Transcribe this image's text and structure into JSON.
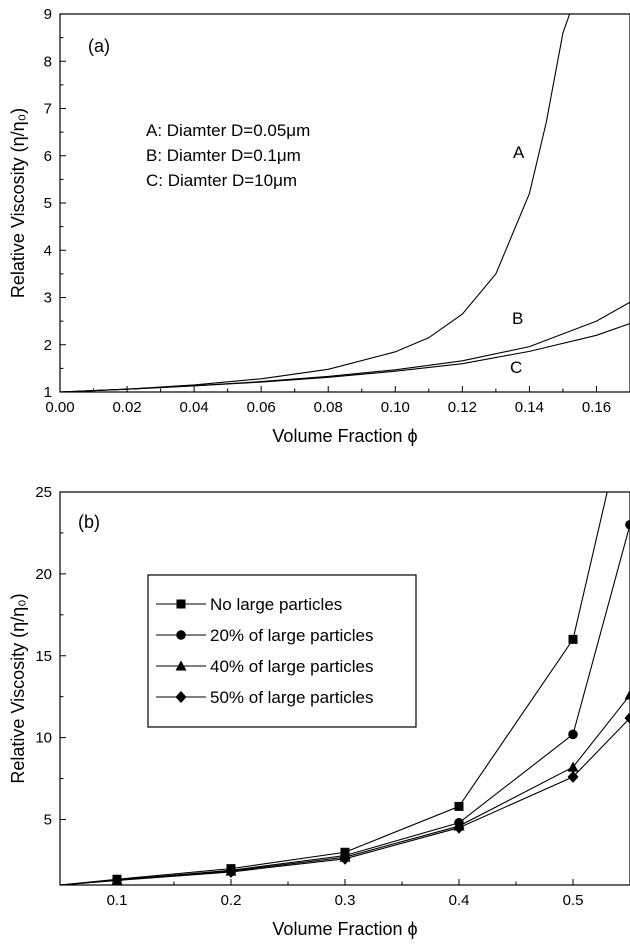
{
  "chart_data": [
    {
      "type": "line",
      "panel_label": "(a)",
      "xlabel": "Volume Fraction ϕ",
      "ylabel": "Relative Viscosity (η/η₀)",
      "xlim": [
        0.0,
        0.17
      ],
      "ylim": [
        1,
        9
      ],
      "xticks": [
        "0.00",
        "0.02",
        "0.04",
        "0.06",
        "0.08",
        "0.10",
        "0.12",
        "0.14",
        "0.16"
      ],
      "yticks": [
        "1",
        "2",
        "3",
        "4",
        "5",
        "6",
        "7",
        "8",
        "9"
      ],
      "annotations": [
        "A: Diamter D=0.05μm",
        "B: Diamter D=0.1μm",
        "C: Diamter D=10μm"
      ],
      "series": [
        {
          "name": "A",
          "x": [
            0.0,
            0.02,
            0.04,
            0.06,
            0.08,
            0.1,
            0.11,
            0.12,
            0.13,
            0.14,
            0.145,
            0.15,
            0.152
          ],
          "y": [
            1.0,
            1.06,
            1.15,
            1.28,
            1.48,
            1.85,
            2.15,
            2.65,
            3.5,
            5.2,
            6.7,
            8.6,
            9.0
          ]
        },
        {
          "name": "B",
          "x": [
            0.0,
            0.02,
            0.04,
            0.06,
            0.08,
            0.1,
            0.12,
            0.14,
            0.16,
            0.17
          ],
          "y": [
            1.0,
            1.06,
            1.13,
            1.22,
            1.33,
            1.47,
            1.66,
            1.96,
            2.5,
            2.9
          ]
        },
        {
          "name": "C",
          "x": [
            0.0,
            0.02,
            0.04,
            0.06,
            0.08,
            0.1,
            0.12,
            0.14,
            0.16,
            0.17
          ],
          "y": [
            1.0,
            1.06,
            1.13,
            1.21,
            1.31,
            1.44,
            1.6,
            1.86,
            2.2,
            2.45
          ]
        }
      ]
    },
    {
      "type": "line",
      "panel_label": "(b)",
      "xlabel": "Volume Fraction ϕ",
      "ylabel": "Relative Viscosity (η/η₀)",
      "xlim": [
        0.05,
        0.55
      ],
      "ylim": [
        1,
        25
      ],
      "xticks": [
        "0.1",
        "0.2",
        "0.3",
        "0.4",
        "0.5"
      ],
      "yticks": [
        "5",
        "10",
        "15",
        "20",
        "25"
      ],
      "legend_position": "upper-left",
      "series": [
        {
          "name": "No large particles",
          "marker": "square",
          "x": [
            0.05,
            0.1,
            0.2,
            0.3,
            0.4,
            0.5,
            0.53
          ],
          "y": [
            1.0,
            1.35,
            2.0,
            3.0,
            5.8,
            16.0,
            25.0
          ],
          "marked": [
            1,
            2,
            3,
            4,
            5
          ]
        },
        {
          "name": "20% of large particles",
          "marker": "circle",
          "x": [
            0.05,
            0.1,
            0.2,
            0.3,
            0.4,
            0.5,
            0.55
          ],
          "y": [
            1.0,
            1.3,
            1.9,
            2.8,
            4.8,
            10.2,
            23.0
          ],
          "marked": [
            1,
            2,
            3,
            4,
            5,
            6
          ]
        },
        {
          "name": "40% of large particles",
          "marker": "triangle",
          "x": [
            0.05,
            0.1,
            0.2,
            0.3,
            0.4,
            0.5,
            0.55
          ],
          "y": [
            1.0,
            1.3,
            1.85,
            2.7,
            4.6,
            8.2,
            12.6
          ],
          "marked": [
            1,
            2,
            3,
            4,
            5,
            6
          ]
        },
        {
          "name": "50% of large particles",
          "marker": "diamond",
          "x": [
            0.05,
            0.1,
            0.2,
            0.3,
            0.4,
            0.5,
            0.55
          ],
          "y": [
            1.0,
            1.28,
            1.8,
            2.6,
            4.5,
            7.6,
            11.2
          ],
          "marked": [
            1,
            2,
            3,
            4,
            5,
            6
          ]
        }
      ]
    }
  ]
}
